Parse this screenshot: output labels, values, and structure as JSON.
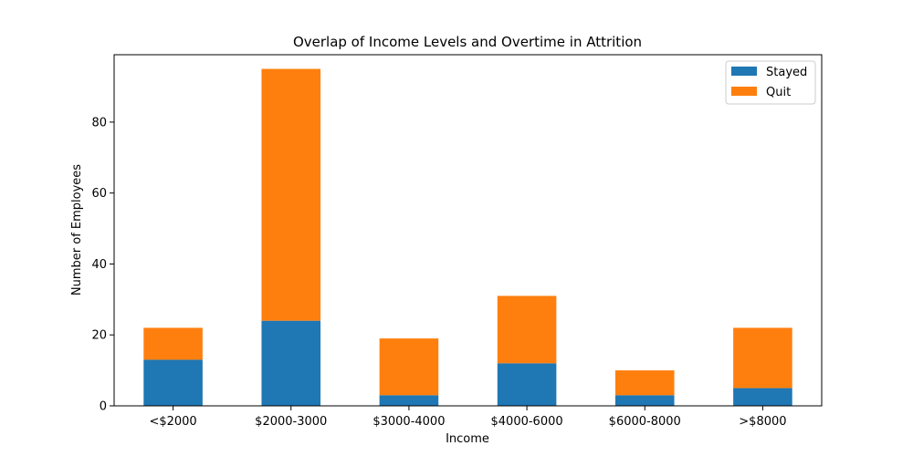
{
  "chart_data": {
    "type": "bar",
    "stacked": true,
    "title": "Overlap of Income Levels and Overtime in Attrition",
    "xlabel": "Income",
    "ylabel": "Number of Employees",
    "categories": [
      "<$2000",
      "$2000-3000",
      "$3000-4000",
      "$4000-6000",
      "$6000-8000",
      ">$8000"
    ],
    "series": [
      {
        "name": "Stayed",
        "color": "#1f77b4",
        "values": [
          13,
          24,
          3,
          12,
          3,
          5
        ]
      },
      {
        "name": "Quit",
        "color": "#ff7f0e",
        "values": [
          9,
          71,
          16,
          19,
          7,
          17
        ]
      }
    ],
    "ylim": [
      0,
      99
    ],
    "yticks": [
      0,
      20,
      40,
      60,
      80
    ],
    "grid": false,
    "legend_position": "top-right"
  }
}
